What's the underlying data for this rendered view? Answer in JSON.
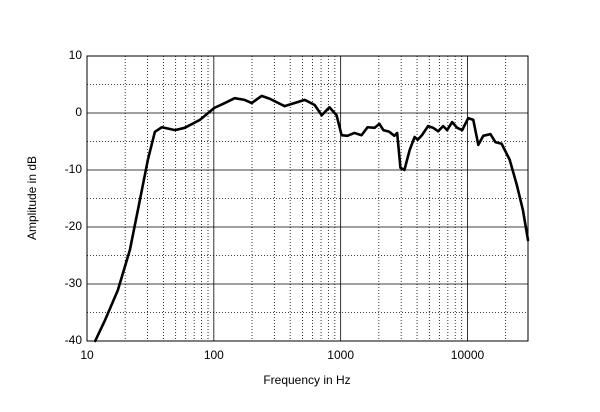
{
  "chart_data": {
    "type": "line",
    "xlabel": "Frequency in Hz",
    "ylabel": "Amplitude in dB",
    "xscale": "log",
    "grid": true,
    "color": "#000000",
    "xlim": [
      10,
      30000
    ],
    "ylim": [
      -40,
      10
    ],
    "xticks": [
      10,
      100,
      1000,
      10000
    ],
    "yticks": [
      -40,
      -30,
      -20,
      -10,
      0,
      10
    ],
    "xminorticks": [
      20,
      30,
      40,
      50,
      60,
      70,
      80,
      90,
      200,
      300,
      400,
      500,
      600,
      700,
      800,
      900,
      2000,
      3000,
      4000,
      5000,
      6000,
      7000,
      8000,
      9000,
      20000
    ],
    "yminorticks": [
      -35,
      -25,
      -15,
      -5,
      5
    ],
    "x": [
      11.6,
      13.9,
      17.5,
      21.8,
      26.1,
      30.2,
      34.3,
      38.9,
      49.4,
      59,
      77.6,
      101,
      122,
      146,
      175,
      199,
      238,
      276,
      362,
      434,
      521,
      624,
      709,
      815,
      929,
      1017,
      1130,
      1284,
      1460,
      1630,
      1850,
      2020,
      2170,
      2420,
      2650,
      2790,
      2960,
      3180,
      3500,
      3830,
      4050,
      4370,
      4890,
      5360,
      5870,
      6430,
      6910,
      7570,
      8290,
      9080,
      10140,
      11110,
      12170,
      13330,
      15150,
      16580,
      18590,
      21510,
      24470,
      27340,
      30000
    ],
    "values": [
      -40,
      -36.3,
      -31.1,
      -24,
      -15.3,
      -8.2,
      -3.3,
      -2.5,
      -3.0,
      -2.6,
      -1.2,
      0.9,
      1.75,
      2.6,
      2.3,
      1.75,
      3,
      2.5,
      1.2,
      1.75,
      2.3,
      1.4,
      -0.4,
      1.0,
      -0.4,
      -3.9,
      -4.0,
      -3.5,
      -3.9,
      -2.5,
      -2.6,
      -1.9,
      -3.0,
      -3.3,
      -4.0,
      -3.5,
      -9.6,
      -10,
      -6.5,
      -4.2,
      -4.7,
      -3.9,
      -2.3,
      -2.6,
      -3.2,
      -2.3,
      -3.0,
      -1.6,
      -2.6,
      -3.0,
      -0.9,
      -1.2,
      -5.6,
      -4.0,
      -3.7,
      -5.1,
      -5.4,
      -8.2,
      -12.6,
      -17,
      -22.3
    ]
  }
}
